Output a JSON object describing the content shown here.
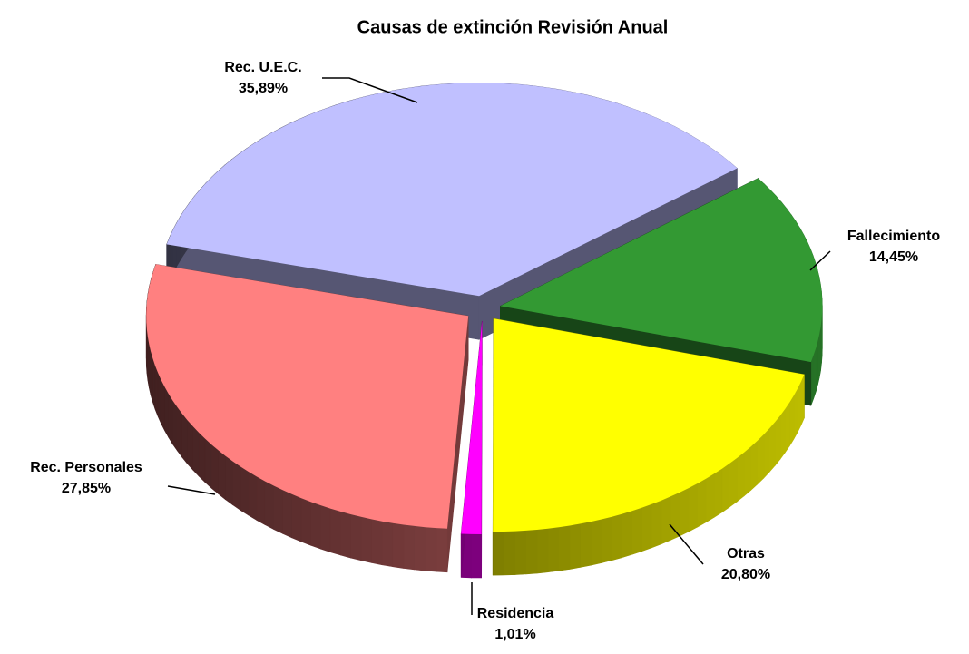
{
  "chart_data": {
    "type": "pie",
    "title": "Causas de extinción Revisión Anual",
    "categories": [
      "Rec. U.E.C.",
      "Fallecimiento",
      "Otras",
      "Residencia",
      "Rec. Personales"
    ],
    "values": [
      35.89,
      14.45,
      20.8,
      1.01,
      27.85
    ],
    "value_labels": [
      "35,89%",
      "14,45%",
      "20,80%",
      "1,01%",
      "27,85%"
    ],
    "colors": [
      "#c0c0ff",
      "#339933",
      "#ffff00",
      "#ff00ff",
      "#ff8080"
    ]
  }
}
